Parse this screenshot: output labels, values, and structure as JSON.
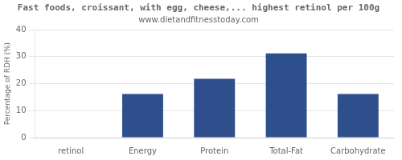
{
  "chart_data": {
    "type": "bar",
    "title": "Fast foods, croissant, with egg, cheese,... highest retinol per 100g",
    "subtitle": "www.dietandfitnesstoday.com",
    "categories": [
      "retinol",
      "Energy",
      "Protein",
      "Total-Fat",
      "Carbohydrate"
    ],
    "values": [
      0,
      16.2,
      21.8,
      31.2,
      16.2
    ],
    "color": "#2e4f8c",
    "ylabel": "Percentage of RDH (%)",
    "ylim": [
      0,
      40
    ],
    "yticks": [
      0,
      10,
      20,
      30,
      40
    ],
    "grid": true
  }
}
